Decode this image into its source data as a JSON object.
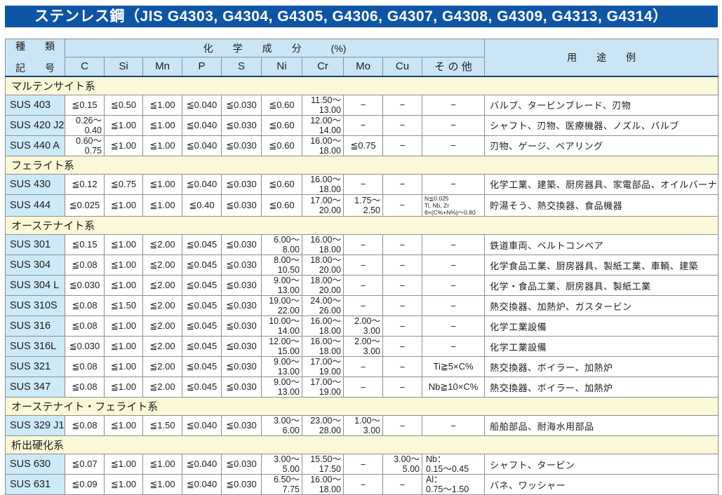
{
  "title": "ステンレス鋼（JIS G4303, G4304, G4305, G4306, G4307, G4308, G4309, G4313, G4314）",
  "colors": {
    "title_bar_bg": "#0f55a5",
    "header_bg": "#c9e5f6",
    "section_bg": "#faf8d7",
    "grade_bg": "#cdeaf9",
    "header_divider": "#1c4473"
  },
  "table": {
    "header": {
      "kind_line1": "種　　類",
      "kind_line2": "記　　号",
      "chem_group": "化　　学　　成　　分　　　(%)",
      "usage": "用　　途　　例",
      "elements": [
        "C",
        "Si",
        "Mn",
        "P",
        "S",
        "Ni",
        "Cr",
        "Mo",
        "Cu",
        "そ の 他"
      ],
      "element_keys": [
        "c",
        "si",
        "mn",
        "p",
        "s",
        "ni",
        "cr",
        "mo",
        "cu",
        "other"
      ]
    },
    "sections": [
      {
        "name": "マルテンサイト系",
        "rows": [
          {
            "grade": "SUS 403",
            "values": [
              "≦0.15",
              "≦0.50",
              "≦1.00",
              "≦0.040",
              "≦0.030",
              "≦0.60",
              "11.50～\n13.00",
              "−",
              "−",
              "−"
            ],
            "usage": "バルブ、タービンブレード、刃物"
          },
          {
            "grade": "SUS 420 J2",
            "values": [
              "0.26～\n0.40",
              "≦1.00",
              "≦1.00",
              "≦0.040",
              "≦0.030",
              "≦0.60",
              "12.00～\n14.00",
              "−",
              "−",
              "−"
            ],
            "usage": "シャフト、刃物、医療機器、ノズル、バルブ"
          },
          {
            "grade": "SUS 440 A",
            "values": [
              "0.60～\n0.75",
              "≦1.00",
              "≦1.00",
              "≦0.040",
              "≦0.030",
              "≦0.60",
              "16.00～\n18.00",
              "≦0.75",
              "−",
              "−"
            ],
            "usage": "刃物、ゲージ、ベアリング"
          }
        ]
      },
      {
        "name": "フェライト系",
        "rows": [
          {
            "grade": "SUS 430",
            "values": [
              "≦0.12",
              "≦0.75",
              "≦1.00",
              "≦0.040",
              "≦0.030",
              "≦0.60",
              "16.00～\n18.00",
              "−",
              "−",
              "−"
            ],
            "usage": "化学工業、建築、厨房器具、家電部品、オイルバーナー部品"
          },
          {
            "grade": "SUS 444",
            "values": [
              "≦0.025",
              "≦1.00",
              "≦1.00",
              "≦0.40",
              "≦0.030",
              "≦0.60",
              "17.00～\n20.00",
              "1.75～\n2.50",
              "−",
              "N≦0.025\nTi, Nb, Zr\n8×(C%+N%)～0.80"
            ],
            "usage": "貯湯そう、熱交換器、食品機器"
          }
        ]
      },
      {
        "name": "オーステナイト系",
        "rows": [
          {
            "grade": "SUS 301",
            "values": [
              "≦0.15",
              "≦1.00",
              "≦2.00",
              "≦0.045",
              "≦0.030",
              "6.00～\n8.00",
              "16.00～\n18.00",
              "−",
              "−",
              "−"
            ],
            "usage": "鉄道車両、ベルトコンベア"
          },
          {
            "grade": "SUS 304",
            "values": [
              "≦0.08",
              "≦1.00",
              "≦2.00",
              "≦0.045",
              "≦0.030",
              "8.00～\n10.50",
              "18.00～\n20.00",
              "−",
              "−",
              "−"
            ],
            "usage": "化学食品工業、厨房器具、製紙工業、車輌、建築"
          },
          {
            "grade": "SUS 304 L",
            "values": [
              "≦0.030",
              "≦1.00",
              "≦2.00",
              "≦0.045",
              "≦0.030",
              "9.00～\n13.00",
              "18.00～\n20.00",
              "−",
              "−",
              "−"
            ],
            "usage": "化学・食品工業、厨房器具、製紙工業"
          },
          {
            "grade": "SUS 310S",
            "values": [
              "≦0.08",
              "≦1.50",
              "≦2.00",
              "≦0.045",
              "≦0.030",
              "19.00～\n22.00",
              "24.00～\n26.00",
              "−",
              "−",
              "−"
            ],
            "usage": "熱交換器、加熱炉、ガスタービン"
          },
          {
            "grade": "SUS 316",
            "values": [
              "≦0.08",
              "≦1.00",
              "≦2.00",
              "≦0.045",
              "≦0.030",
              "10.00～\n14.00",
              "16.00～\n18.00",
              "2.00～\n3.00",
              "−",
              "−"
            ],
            "usage": "化学工業設備"
          },
          {
            "grade": "SUS 316L",
            "values": [
              "≦0.030",
              "≦1.00",
              "≦2.00",
              "≦0.045",
              "≦0.030",
              "12.00～\n15.00",
              "16.00～\n18.00",
              "2.00～\n3.00",
              "−",
              "−"
            ],
            "usage": "化学工業設備"
          },
          {
            "grade": "SUS 321",
            "values": [
              "≦0.08",
              "≦1.00",
              "≦2.00",
              "≦0.045",
              "≦0.030",
              "9.00～\n13.00",
              "17.00～\n19.00",
              "−",
              "−",
              "Ti≧5×C%"
            ],
            "usage": "熱交換器、ボイラー、加熱炉"
          },
          {
            "grade": "SUS 347",
            "values": [
              "≦0.08",
              "≦1.00",
              "≦2.00",
              "≦0.045",
              "≦0.030",
              "9.00～\n13.00",
              "17.00～\n19.00",
              "−",
              "−",
              "Nb≧10×C%"
            ],
            "usage": "熱交換器、ボイラー、加熱炉"
          }
        ]
      },
      {
        "name": "オーステナイト・フェライト系",
        "rows": [
          {
            "grade": "SUS 329 J1",
            "values": [
              "≦0.08",
              "≦1.00",
              "≦1.50",
              "≦0.040",
              "≦0.030",
              "3.00～\n6.00",
              "23.00～\n28.00",
              "1.00～\n3.00",
              "−",
              "−"
            ],
            "usage": "船舶部品、耐海水用部品"
          }
        ]
      },
      {
        "name": "析出硬化系",
        "rows": [
          {
            "grade": "SUS 630",
            "values": [
              "≦0.07",
              "≦1.00",
              "≦1.00",
              "≦0.040",
              "≦0.030",
              "3.00～\n5.00",
              "15.50～\n17.50",
              "−",
              "3.00～\n5.00",
              "Nb：\n0.15～0.45"
            ],
            "usage": "シャフト、タービン"
          },
          {
            "grade": "SUS 631",
            "values": [
              "≦0.09",
              "≦1.00",
              "≦1.00",
              "≦0.040",
              "≦0.030",
              "6.50～\n7.75",
              "16.00～\n18.00",
              "−",
              "−",
              "Al：\n0.75～1.50"
            ],
            "usage": "バネ、ワッシャー"
          }
        ]
      }
    ]
  }
}
